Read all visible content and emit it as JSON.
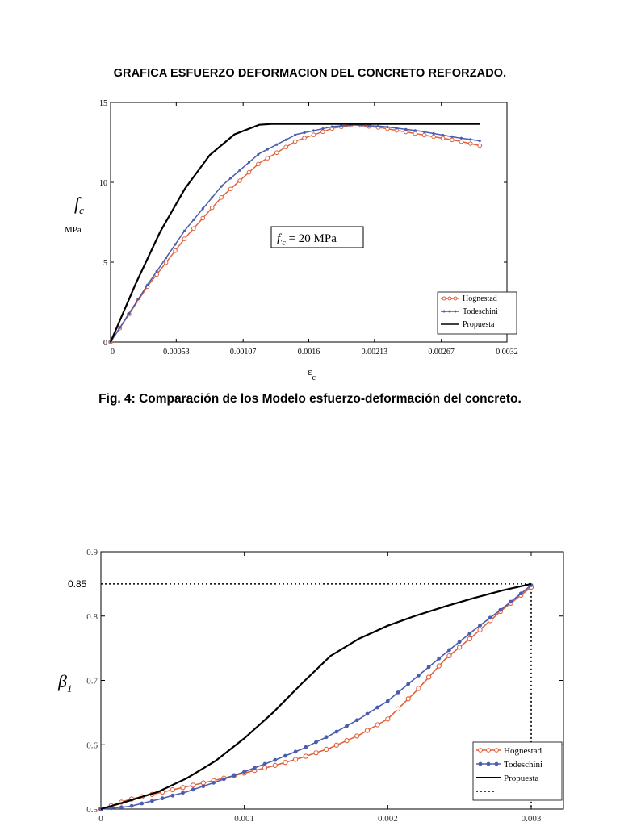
{
  "page": {
    "title": "GRAFICA ESFUERZO DEFORMACION DEL CONCRETO REFORZADO.",
    "caption": "Fig. 4: Comparación de los Modelo esfuerzo-deformación del concreto."
  },
  "colors": {
    "hognestad": "#e0623c",
    "todeschini": "#4a5db0",
    "propuesta": "#000000"
  },
  "chart_data": [
    {
      "type": "line",
      "title": "",
      "ylabel": "f c",
      "yunit": "MPa",
      "xlabel": "ε c",
      "annotation": "f ′c = 20 MPa",
      "xlim": [
        0,
        0.0032
      ],
      "ylim": [
        0,
        15
      ],
      "xticks": [
        0,
        0.00053,
        0.00107,
        0.0016,
        0.00213,
        0.00267,
        0.0032
      ],
      "xtick_labels": [
        "0",
        "0.00053",
        "0.00107",
        "0.0016",
        "0.00213",
        "0.00267",
        "0.0032"
      ],
      "yticks": [
        0,
        5,
        10,
        15
      ],
      "ytick_labels": [
        "0",
        "5",
        "10",
        "15"
      ],
      "legend": "bottom-right",
      "grid": false,
      "series": [
        {
          "name": "Hognestad",
          "x": [
            0,
            0.0003,
            0.0006,
            0.0009,
            0.0012,
            0.0015,
            0.0018,
            0.00197,
            0.0022,
            0.0025,
            0.0028,
            0.00298
          ],
          "y": [
            0,
            3.5,
            6.5,
            9.1,
            11.2,
            12.6,
            13.4,
            13.6,
            13.4,
            13.0,
            12.6,
            12.3
          ]
        },
        {
          "name": "Todeschini",
          "x": [
            0,
            0.0003,
            0.0006,
            0.0009,
            0.0012,
            0.0015,
            0.0018,
            0.00197,
            0.0022,
            0.0025,
            0.0028,
            0.00298
          ],
          "y": [
            0,
            3.6,
            7.0,
            9.8,
            11.8,
            13.0,
            13.5,
            13.6,
            13.5,
            13.2,
            12.8,
            12.6
          ]
        },
        {
          "name": "Propuesta",
          "x": [
            0,
            0.0002,
            0.0004,
            0.0006,
            0.0008,
            0.001,
            0.0012,
            0.0013,
            0.0022,
            0.0029,
            0.00298
          ],
          "y": [
            0,
            3.6,
            6.9,
            9.6,
            11.7,
            13.0,
            13.6,
            13.65,
            13.65,
            13.65,
            13.65
          ]
        }
      ]
    },
    {
      "type": "line",
      "title": "",
      "ylabel": "β 1",
      "xlim": [
        0,
        0.003
      ],
      "ylim": [
        0.5,
        0.9
      ],
      "xticks": [
        0,
        0.001,
        0.002,
        0.003
      ],
      "xtick_labels": [
        "0",
        "0.001",
        "0.002",
        "0.003"
      ],
      "yticks": [
        0.5,
        0.6,
        0.7,
        0.8,
        0.9
      ],
      "ytick_labels": [
        "0.5",
        "0.6",
        "0.7",
        "0.8",
        "0.9"
      ],
      "extra_ytick": "0.85",
      "reference": {
        "x": 0.003,
        "y": 0.85
      },
      "legend": "bottom-right",
      "grid": false,
      "series": [
        {
          "name": "Hognestad",
          "x": [
            0,
            0.0002,
            0.0004,
            0.0006,
            0.0008,
            0.001,
            0.0012,
            0.0014,
            0.0016,
            0.0018,
            0.002,
            0.0022,
            0.0024,
            0.0026,
            0.0028,
            0.003
          ],
          "y": [
            0.5,
            0.515,
            0.525,
            0.535,
            0.545,
            0.556,
            0.567,
            0.58,
            0.595,
            0.615,
            0.64,
            0.684,
            0.733,
            0.77,
            0.81,
            0.845
          ]
        },
        {
          "name": "Todeschini",
          "x": [
            0,
            0.0002,
            0.0004,
            0.0006,
            0.0008,
            0.001,
            0.0012,
            0.0014,
            0.0016,
            0.0018,
            0.002,
            0.0022,
            0.0024,
            0.0026,
            0.0028,
            0.003
          ],
          "y": [
            0.5,
            0.504,
            0.515,
            0.527,
            0.542,
            0.558,
            0.575,
            0.593,
            0.615,
            0.64,
            0.668,
            0.705,
            0.742,
            0.778,
            0.812,
            0.848
          ]
        },
        {
          "name": "Propuesta",
          "x": [
            0,
            0.0002,
            0.0004,
            0.0006,
            0.0008,
            0.001,
            0.0012,
            0.0014,
            0.0016,
            0.0018,
            0.002,
            0.0022,
            0.0024,
            0.0026,
            0.0028,
            0.003
          ],
          "y": [
            0.5,
            0.513,
            0.527,
            0.548,
            0.575,
            0.61,
            0.65,
            0.695,
            0.738,
            0.765,
            0.785,
            0.801,
            0.815,
            0.828,
            0.84,
            0.85
          ]
        },
        {
          "name": ""
        }
      ]
    }
  ]
}
